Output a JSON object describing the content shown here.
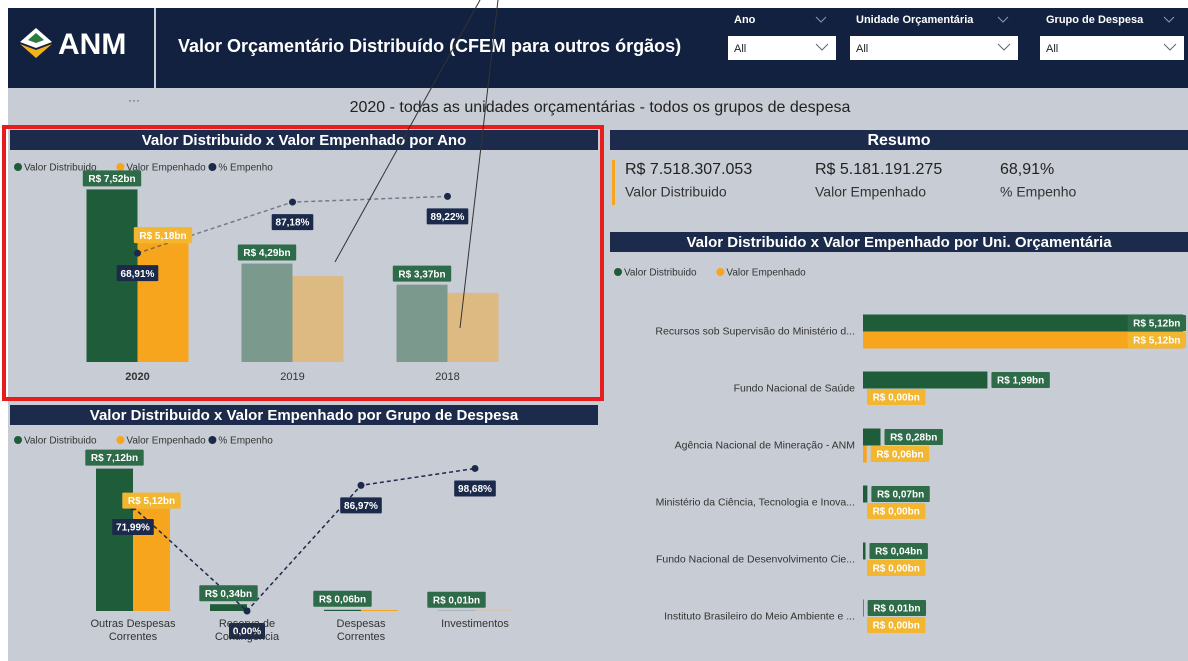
{
  "header": {
    "logo": "ANM",
    "title": "Valor Orçamentário Distribuído (CFEM para outros órgãos)"
  },
  "filters": [
    {
      "label": "Ano",
      "value": "All"
    },
    {
      "label": "Unidade Orçamentária",
      "value": "All"
    },
    {
      "label": "Grupo de Despesa",
      "value": "All"
    }
  ],
  "subtitle": "2020 - todas as unidades orçamentárias - todos os grupos de despesa",
  "summary": {
    "title": "Resumo",
    "items": [
      {
        "value": "R$ 7.518.307.053",
        "label": "Valor Distribuido"
      },
      {
        "value": "R$ 5.181.191.275",
        "label": "Valor Empenhado"
      },
      {
        "value": "68,91%",
        "label": "% Empenho"
      }
    ]
  },
  "chart_data": [
    {
      "type": "bar",
      "title": "Valor Distribuido x Valor Empenhado por Ano",
      "categories": [
        "2020",
        "2019",
        "2018"
      ],
      "selected": "2020",
      "ylim": [
        0,
        7.8
      ],
      "y2lim": [
        30,
        94
      ],
      "series": [
        {
          "name": "Valor Distribuido",
          "color": "#1f5c3a",
          "values": [
            7.52,
            4.29,
            3.37
          ],
          "value_labels": [
            "R$ 7,52bn",
            "R$ 4,29bn",
            "R$ 3,37bn"
          ]
        },
        {
          "name": "Valor Empenhado",
          "color": "#f7a51c",
          "values": [
            5.18,
            3.74,
            3.01
          ],
          "value_labels": [
            "R$ 5,18bn",
            null,
            null
          ]
        },
        {
          "name": "% Empenho",
          "color": "#1b2a4a",
          "axis": "y2",
          "values": [
            68.91,
            87.18,
            89.22
          ],
          "value_labels": [
            "68,91%",
            "87,18%",
            "89,22%"
          ]
        }
      ]
    },
    {
      "type": "bar",
      "title": "Valor Distribuido x Valor Empenhado por Grupo de Despesa",
      "categories": [
        "Outras Despesas Correntes",
        "Reserva de Contingência",
        "Despesas Correntes",
        "Investimentos"
      ],
      "ylim": [
        0,
        7.8
      ],
      "y2lim": [
        0,
        108
      ],
      "series": [
        {
          "name": "Valor Distribuido",
          "color": "#1f5c3a",
          "values": [
            7.12,
            0.34,
            0.06,
            0.01
          ],
          "value_labels": [
            "R$ 7,12bn",
            "R$ 0,34bn",
            "R$ 0,06bn",
            "R$ 0,01bn"
          ]
        },
        {
          "name": "Valor Empenhado",
          "color": "#f7a51c",
          "values": [
            5.12,
            0,
            0.05,
            0.01
          ],
          "value_labels": [
            "R$ 5,12bn",
            null,
            null,
            null
          ]
        },
        {
          "name": "% Empenho",
          "color": "#1b2a4a",
          "axis": "y2",
          "values": [
            71.99,
            0,
            86.97,
            98.68
          ],
          "value_labels": [
            "71,99%",
            "0,00%",
            "86,97%",
            "98,68%"
          ]
        }
      ]
    },
    {
      "type": "hbar",
      "title": "Valor Distribuido x Valor Empenhado por Uni. Orçamentária",
      "categories": [
        "Recursos sob Supervisão do Ministério d...",
        "Fundo Nacional de Saúde",
        "Agência Nacional de Mineração - ANM",
        "Ministério da Ciência, Tecnologia e Inova...",
        "Fundo Nacional de Desenvolvimento Cie...",
        "Instituto Brasileiro do Meio Ambiente e ..."
      ],
      "xlim": [
        0,
        5.15
      ],
      "series": [
        {
          "name": "Valor Distribuido",
          "color": "#1f5c3a",
          "values": [
            5.12,
            1.99,
            0.28,
            0.07,
            0.04,
            0.01
          ],
          "value_labels": [
            "R$ 5,12bn",
            "R$ 1,99bn",
            "R$ 0,28bn",
            "R$ 0,07bn",
            "R$ 0,04bn",
            "R$ 0,01bn"
          ]
        },
        {
          "name": "Valor Empenhado",
          "color": "#f7a51c",
          "values": [
            5.12,
            0,
            0.06,
            0,
            0,
            0
          ],
          "value_labels": [
            "R$ 5,12bn",
            "R$ 0,00bn",
            "R$ 0,06bn",
            "R$ 0,00bn",
            "R$ 0,00bn",
            "R$ 0,00bn"
          ]
        }
      ]
    }
  ]
}
